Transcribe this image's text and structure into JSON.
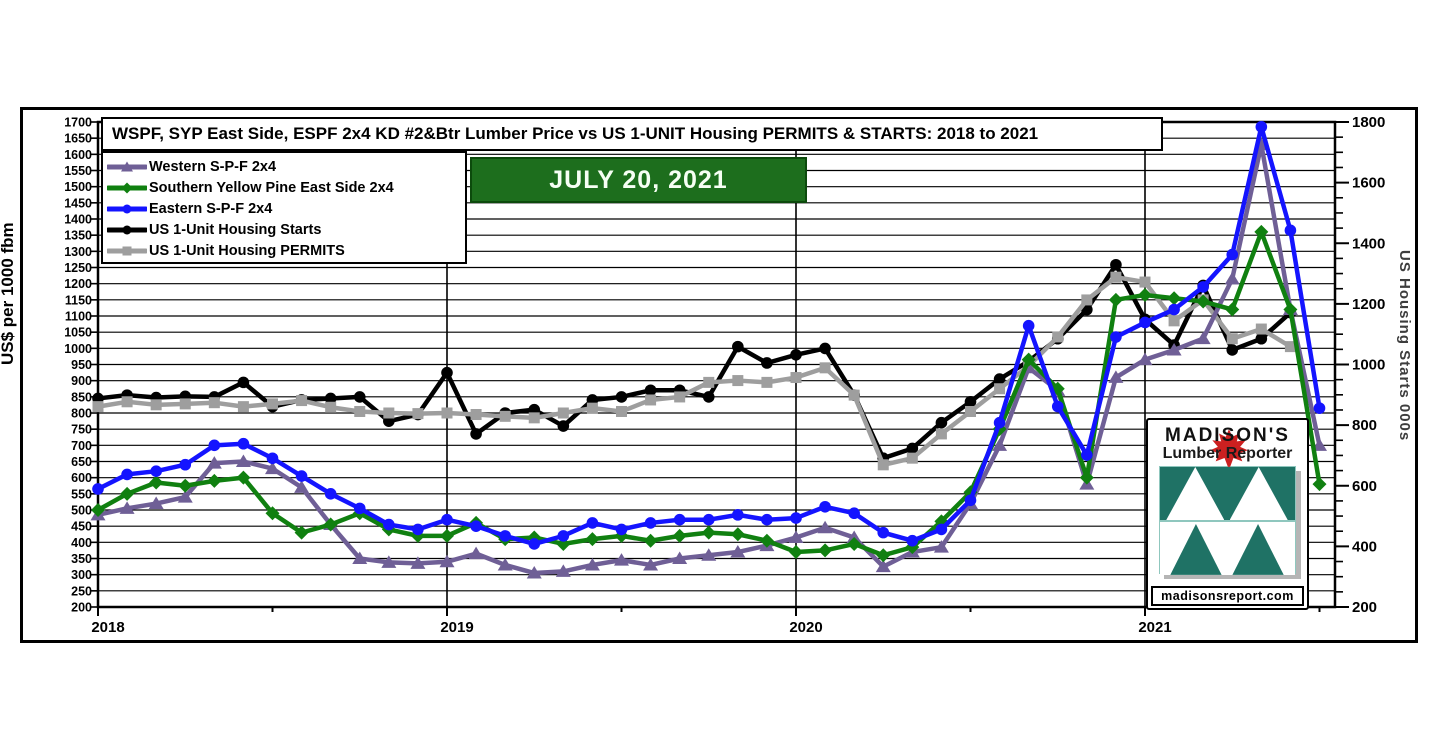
{
  "banner": {
    "date_label": "JULY 20, 2021"
  },
  "logo": {
    "brand": "MADISON'S",
    "product": "Lumber Reporter",
    "url": "madisonsreport.com",
    "leaf_color": "#cc2020",
    "teal_color": "#1f7265"
  },
  "chart_data": {
    "type": "line",
    "title": "WSPF, SYP East Side, ESPF 2x4 KD #2&Btr Lumber Price vs US 1-UNIT Housing PERMITS & STARTS: 2018 to 2021",
    "subtitle": "JULY 20, 2021",
    "xlabel": "",
    "ylabel_left": "US$ per 1000 fbm",
    "ylabel_right": "US Housing  Starts  000s",
    "x_start": "2018-01",
    "x_end": "2021-07",
    "x_year_labels": [
      "2018",
      "2019",
      "2020",
      "2021"
    ],
    "grid": "horizontal-every-50, vertical-at-years",
    "legend_position": "top-left box",
    "axes": {
      "left": {
        "min": 200,
        "max": 1700,
        "tick_step": 50,
        "label_step": 50
      },
      "right": {
        "min": 200,
        "max": 1800,
        "tick_step": 50,
        "label_step": 200
      }
    },
    "series": [
      {
        "name": "Western S-P-F 2x4",
        "color": "#6f5f96",
        "marker": "triangle",
        "axis": "left",
        "unit": "US$/1000fbm",
        "values": [
          485,
          505,
          520,
          540,
          645,
          650,
          628,
          570,
          455,
          350,
          338,
          335,
          340,
          365,
          330,
          305,
          310,
          330,
          345,
          330,
          350,
          360,
          370,
          390,
          415,
          445,
          415,
          325,
          370,
          385,
          520,
          700,
          940,
          870,
          580,
          910,
          965,
          995,
          1030,
          1215,
          1630,
          1120,
          700
        ]
      },
      {
        "name": "Southern Yellow Pine East Side 2x4",
        "color": "#108010",
        "marker": "diamond",
        "axis": "left",
        "unit": "US$/1000fbm",
        "values": [
          500,
          550,
          585,
          575,
          590,
          600,
          490,
          430,
          455,
          490,
          440,
          420,
          420,
          460,
          410,
          415,
          395,
          410,
          420,
          405,
          420,
          430,
          425,
          405,
          370,
          375,
          395,
          360,
          385,
          465,
          555,
          750,
          965,
          875,
          600,
          1150,
          1165,
          1155,
          1145,
          1120,
          1360,
          1120,
          580
        ]
      },
      {
        "name": "Eastern S-P-F 2x4",
        "color": "#1414ff",
        "marker": "circle",
        "axis": "left",
        "unit": "US$/1000fbm",
        "values": [
          565,
          610,
          620,
          640,
          700,
          705,
          660,
          605,
          550,
          505,
          455,
          440,
          470,
          450,
          420,
          395,
          420,
          460,
          440,
          460,
          470,
          470,
          485,
          470,
          475,
          510,
          490,
          430,
          405,
          440,
          530,
          770,
          1070,
          820,
          670,
          1035,
          1080,
          1120,
          1190,
          1290,
          1685,
          1365,
          815
        ]
      },
      {
        "name": "US 1-Unit Housing Starts",
        "color": "#000000",
        "marker": "circle",
        "axis": "right",
        "unit": "000s",
        "values": [
          888,
          899,
          891,
          895,
          893,
          941,
          861,
          883,
          888,
          893,
          813,
          835,
          973,
          771,
          840,
          851,
          797,
          883,
          893,
          915,
          915,
          893,
          1059,
          1005,
          1032,
          1053,
          899,
          691,
          723,
          808,
          877,
          952,
          1011,
          1085,
          1181,
          1329,
          1149,
          1064,
          1261,
          1048,
          1085,
          1171
        ]
      },
      {
        "name": "US 1-Unit Housing PERMITS",
        "color": "#9e9e9e",
        "marker": "square",
        "axis": "right",
        "unit": "000s",
        "values": [
          861,
          877,
          867,
          870,
          874,
          861,
          870,
          881,
          859,
          845,
          840,
          838,
          840,
          835,
          829,
          824,
          840,
          856,
          845,
          883,
          893,
          941,
          947,
          941,
          957,
          989,
          899,
          669,
          691,
          771,
          845,
          920,
          995,
          1091,
          1213,
          1288,
          1272,
          1144,
          1213,
          1085,
          1117,
          1059
        ]
      }
    ]
  }
}
